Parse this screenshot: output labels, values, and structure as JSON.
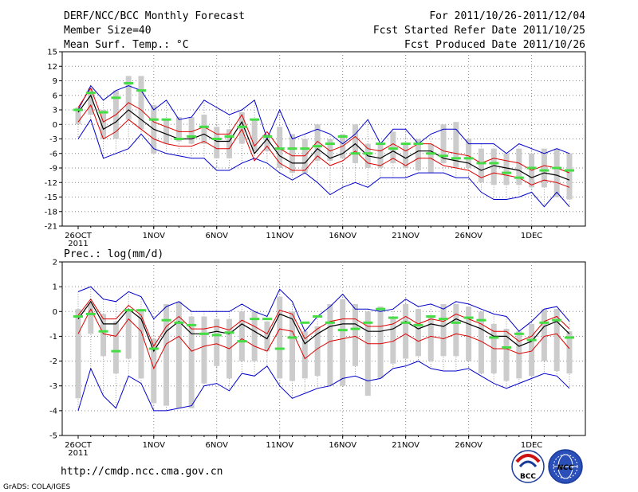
{
  "header": {
    "title": "DERF/NCC/BCC Monthly Forecast",
    "member_size": "Member Size=40",
    "variable": "Mean Surf. Temp.: °C",
    "period": "For 2011/10/26-2011/12/04",
    "fcst_started": "Fcst Started Refer Date 2011/10/25",
    "fcst_produced": "Fcst Produced Date 2011/10/26"
  },
  "footer": {
    "url": "http://cmdp.ncc.cma.gov.cn",
    "credit": "GrADS: COLA/IGES",
    "logo_bcc": "BCC",
    "logo_ncc": "NCC"
  },
  "colors": {
    "envelope": "#0000cc",
    "spread": "#dd0000",
    "mean": "#000000",
    "obs_bar": "#44dd44",
    "box": "#cccccc",
    "grid": "#888888"
  },
  "chart_data": [
    {
      "type": "line",
      "title": "Mean Surf. Temp.: °C",
      "x_tick_labels": [
        "26OCT",
        "1NOV",
        "6NOV",
        "11NOV",
        "16NOV",
        "21NOV",
        "26NOV",
        "1DEC"
      ],
      "x_tick_days": [
        0,
        6,
        11,
        16,
        21,
        26,
        31,
        36
      ],
      "x_year_label": "2011",
      "days": 40,
      "ylim": [
        -21,
        15
      ],
      "yticks": [
        15,
        12,
        9,
        6,
        3,
        0,
        -3,
        -6,
        -9,
        -12,
        -15,
        -18,
        -21
      ],
      "series": [
        {
          "name": "max",
          "values": [
            -3,
            1,
            -7,
            -6,
            -5,
            -2,
            -5,
            -6,
            -6.5,
            -7,
            -7,
            -9.5,
            -9.5,
            -8,
            -7,
            -8,
            -10,
            -11.5,
            -10,
            -12,
            -14.5,
            -13,
            -12,
            -13,
            -11,
            -11,
            -11,
            -10,
            -10,
            -10,
            -11,
            -11,
            -14,
            -15.5,
            -15.5,
            -15,
            -14,
            -17,
            -14,
            -17
          ]
        },
        {
          "name": "max_upper",
          "values": [
            3,
            8,
            5,
            7,
            8,
            7,
            3,
            5,
            1,
            1.5,
            5,
            3.5,
            2,
            3,
            5,
            -3,
            3,
            -3,
            -2,
            -1,
            -2,
            -4,
            -2,
            1,
            -4,
            -1,
            -1,
            -4,
            -2,
            -1,
            -1,
            -4,
            -4,
            -4,
            -6,
            -4,
            -5,
            -6,
            -5,
            -6
          ]
        }
      ],
      "mean": [
        2.5,
        6,
        -1,
        0.5,
        3,
        1,
        -1,
        -2,
        -3,
        -3,
        -2,
        -3.5,
        -3.5,
        0.5,
        -6,
        -3,
        -6.5,
        -8,
        -8,
        -5,
        -7,
        -6,
        -4,
        -6.5,
        -7,
        -5.5,
        -7,
        -5.5,
        -5.5,
        -7,
        -7.5,
        -8,
        -9.5,
        -8.5,
        -9,
        -9.5,
        -11,
        -10,
        -10.5,
        -11.5
      ],
      "spread_upper": [
        3.5,
        7.5,
        0.5,
        2,
        4.5,
        3,
        0.5,
        -0.5,
        -1.5,
        -1.5,
        -0.5,
        -2,
        -2,
        2,
        -4.5,
        -1.5,
        -5,
        -6.5,
        -6.5,
        -3.5,
        -5.5,
        -4.5,
        -2.5,
        -5,
        -5.5,
        -4,
        -5.5,
        -4,
        -4,
        -5.5,
        -6,
        -6.5,
        -8,
        -7,
        -7.5,
        -8,
        -9.5,
        -8.5,
        -9,
        -10
      ],
      "spread_lower": [
        0.5,
        4,
        -3,
        -1.5,
        1,
        -1,
        -3,
        -4,
        -4.5,
        -4.5,
        -3.5,
        -5,
        -5,
        -1,
        -7.5,
        -4.5,
        -8,
        -9.5,
        -9.5,
        -6.5,
        -8.5,
        -7.5,
        -5.5,
        -8,
        -8.5,
        -7,
        -8.5,
        -7,
        -7,
        -8.5,
        -9,
        -9.5,
        -11,
        -10,
        -10.5,
        -11,
        -12.5,
        -11.5,
        -12,
        -13
      ],
      "envelope_upper": [
        3,
        8,
        5,
        7,
        8,
        7,
        3,
        5,
        1,
        1.5,
        5,
        3.5,
        2,
        3,
        5,
        -3,
        3,
        -3,
        -2,
        -1,
        -2,
        -4,
        -2,
        1,
        -4,
        -1,
        -1,
        -4,
        -2,
        -1,
        -1,
        -4,
        -4,
        -4,
        -6,
        -4,
        -5,
        -6,
        -5,
        -6
      ],
      "envelope_lower": [
        -3,
        1,
        -7,
        -6,
        -5,
        -2,
        -5,
        -6,
        -6.5,
        -7,
        -7,
        -9.5,
        -9.5,
        -8,
        -7,
        -8,
        -10,
        -11.5,
        -10,
        -12,
        -14.5,
        -13,
        -12,
        -13,
        -11,
        -11,
        -11,
        -10,
        -10,
        -10,
        -11,
        -11,
        -14,
        -15.5,
        -15.5,
        -15,
        -14,
        -17,
        -14,
        -17
      ],
      "box_top": [
        3.5,
        7.5,
        3,
        7,
        10,
        10,
        4,
        1,
        1.5,
        1.5,
        2,
        -0.5,
        -1,
        2.5,
        1,
        -2,
        -0.5,
        -2,
        -3,
        0,
        -3,
        -2,
        0,
        -4,
        -4,
        -1.5,
        -4,
        -3,
        -4,
        0,
        0.5,
        -3,
        -5,
        -5,
        -6,
        -5,
        -6,
        -5,
        -5,
        -6
      ],
      "box_bottom": [
        0,
        2,
        -3,
        -3,
        1,
        -1,
        -6,
        -4,
        -3.5,
        -4,
        -4,
        -7,
        -7,
        -4,
        -5.5,
        -5.5,
        -9,
        -10,
        -10,
        -7.5,
        -7.5,
        -7,
        -8,
        -9,
        -9,
        -8,
        -9,
        -9.5,
        -10,
        -8,
        -9,
        -9,
        -12,
        -12.5,
        -12.5,
        -12.5,
        -13,
        -13,
        -15,
        -15.5
      ],
      "observed": [
        3,
        6.5,
        2.5,
        5.5,
        8.5,
        7,
        1,
        1,
        -3,
        -2.5,
        -0.5,
        -3,
        -2.5,
        -0.5,
        1,
        -2.5,
        -5,
        -5,
        -5,
        -4.5,
        -4,
        -2.5,
        -6,
        -6,
        -4,
        -5,
        -4,
        -4,
        -6,
        -6.5,
        -7,
        -7,
        -8,
        -8,
        -10,
        -11,
        -9,
        -9.5,
        -9,
        -9.5
      ]
    },
    {
      "type": "line",
      "title": "Prec.: log(mm/d)",
      "x_tick_labels": [
        "26OCT",
        "1NOV",
        "6NOV",
        "11NOV",
        "16NOV",
        "21NOV",
        "26NOV",
        "1DEC"
      ],
      "x_tick_days": [
        0,
        6,
        11,
        16,
        21,
        26,
        31,
        36
      ],
      "x_year_label": "2011",
      "days": 40,
      "ylim": [
        -5,
        2
      ],
      "yticks": [
        2,
        1,
        0,
        -1,
        -2,
        -3,
        -4,
        -5
      ],
      "mean": [
        -0.3,
        0.4,
        -0.5,
        -0.5,
        0.1,
        -0.3,
        -1.6,
        -0.8,
        -0.4,
        -0.9,
        -0.9,
        -0.8,
        -0.9,
        -0.5,
        -0.8,
        -1.1,
        -0.1,
        -0.3,
        -1.3,
        -0.9,
        -0.6,
        -0.5,
        -0.5,
        -0.8,
        -0.8,
        -0.7,
        -0.4,
        -0.7,
        -0.5,
        -0.6,
        -0.3,
        -0.5,
        -0.7,
        -1.0,
        -1.0,
        -1.4,
        -1.2,
        -0.6,
        -0.4,
        -0.9
      ],
      "spread_upper": [
        -0.15,
        0.5,
        -0.3,
        -0.3,
        0.25,
        -0.15,
        -1.4,
        -0.6,
        -0.2,
        -0.7,
        -0.7,
        -0.6,
        -0.75,
        -0.35,
        -0.6,
        -0.9,
        0.05,
        -0.1,
        -1.1,
        -0.7,
        -0.4,
        -0.3,
        -0.3,
        -0.6,
        -0.6,
        -0.5,
        -0.2,
        -0.5,
        -0.3,
        -0.4,
        -0.1,
        -0.3,
        -0.5,
        -0.8,
        -0.8,
        -1.2,
        -1.0,
        -0.4,
        -0.2,
        -0.7
      ],
      "spread_lower": [
        -0.9,
        0.1,
        -0.9,
        -1.0,
        -0.3,
        -0.8,
        -2.3,
        -1.3,
        -1.0,
        -1.6,
        -1.4,
        -1.3,
        -1.5,
        -1.1,
        -1.4,
        -1.6,
        -0.7,
        -0.8,
        -1.9,
        -1.5,
        -1.2,
        -1.1,
        -1.0,
        -1.3,
        -1.3,
        -1.2,
        -0.9,
        -1.2,
        -1.0,
        -1.1,
        -0.9,
        -1.0,
        -1.2,
        -1.5,
        -1.5,
        -1.7,
        -1.6,
        -1.0,
        -0.9,
        -1.5
      ],
      "envelope_upper": [
        0.8,
        1.0,
        0.5,
        0.4,
        0.8,
        0.6,
        -0.3,
        0.2,
        0.4,
        0.0,
        0.0,
        0.0,
        0.0,
        0.3,
        0.0,
        -0.2,
        0.9,
        0.4,
        -0.8,
        -0.2,
        0.2,
        0.7,
        0.1,
        0.1,
        0.0,
        0.1,
        0.5,
        0.2,
        0.3,
        0.1,
        0.4,
        0.3,
        0.1,
        -0.1,
        -0.2,
        -0.8,
        -0.4,
        0.1,
        0.2,
        -0.4
      ],
      "envelope_lower": [
        -4.0,
        -2.3,
        -3.4,
        -3.9,
        -2.6,
        -2.9,
        -4.0,
        -4.0,
        -3.9,
        -3.8,
        -3.0,
        -2.9,
        -3.2,
        -2.5,
        -2.6,
        -2.2,
        -3.0,
        -3.5,
        -3.3,
        -3.1,
        -3.0,
        -2.7,
        -2.6,
        -2.8,
        -2.7,
        -2.3,
        -2.2,
        -2.0,
        -2.3,
        -2.4,
        -2.4,
        -2.3,
        -2.6,
        -2.9,
        -3.1,
        -2.9,
        -2.7,
        -2.5,
        -2.6,
        -3.1
      ],
      "box_top": [
        0.1,
        0.3,
        -0.1,
        -0.4,
        0.1,
        0.1,
        -1.1,
        0.3,
        0.4,
        -0.2,
        -0.2,
        -0.3,
        -0.3,
        0.0,
        0.0,
        -0.4,
        0.6,
        0.0,
        -0.8,
        -0.6,
        0.3,
        0.5,
        0.3,
        0.0,
        0.2,
        -0.3,
        0.3,
        0.1,
        -0.2,
        0.3,
        0.3,
        0.2,
        0.0,
        -0.5,
        -0.7,
        -0.8,
        -0.5,
        0.1,
        0.1,
        -0.8
      ],
      "box_bottom": [
        -3.5,
        -0.9,
        -1.8,
        -2.5,
        -1.9,
        -2.7,
        -3.7,
        -3.8,
        -3.9,
        -3.9,
        -2.9,
        -2.2,
        -2.7,
        -2.0,
        -2.0,
        -1.6,
        -2.7,
        -2.8,
        -2.7,
        -2.6,
        -3.0,
        -3.0,
        -2.2,
        -3.4,
        -2.7,
        -2.1,
        -1.9,
        -1.8,
        -2.0,
        -1.8,
        -1.8,
        -2.0,
        -2.5,
        -2.5,
        -2.8,
        -2.7,
        -2.6,
        -2.0,
        -2.4,
        -2.5
      ],
      "observed": [
        -0.2,
        -0.1,
        -0.8,
        -1.6,
        0.05,
        0.05,
        -1.5,
        -0.35,
        -0.45,
        -0.55,
        -0.9,
        -0.95,
        -0.85,
        -1.2,
        -0.3,
        -0.3,
        -1.5,
        -1.05,
        -0.45,
        -0.2,
        -0.45,
        -0.75,
        -0.7,
        -0.45,
        0.1,
        -0.25,
        -0.45,
        -0.55,
        -0.2,
        -0.3,
        -0.45,
        -0.25,
        -0.35,
        -1.05,
        -1.45,
        -0.9,
        -1.15,
        -0.45,
        -0.35,
        -1.05
      ]
    }
  ]
}
